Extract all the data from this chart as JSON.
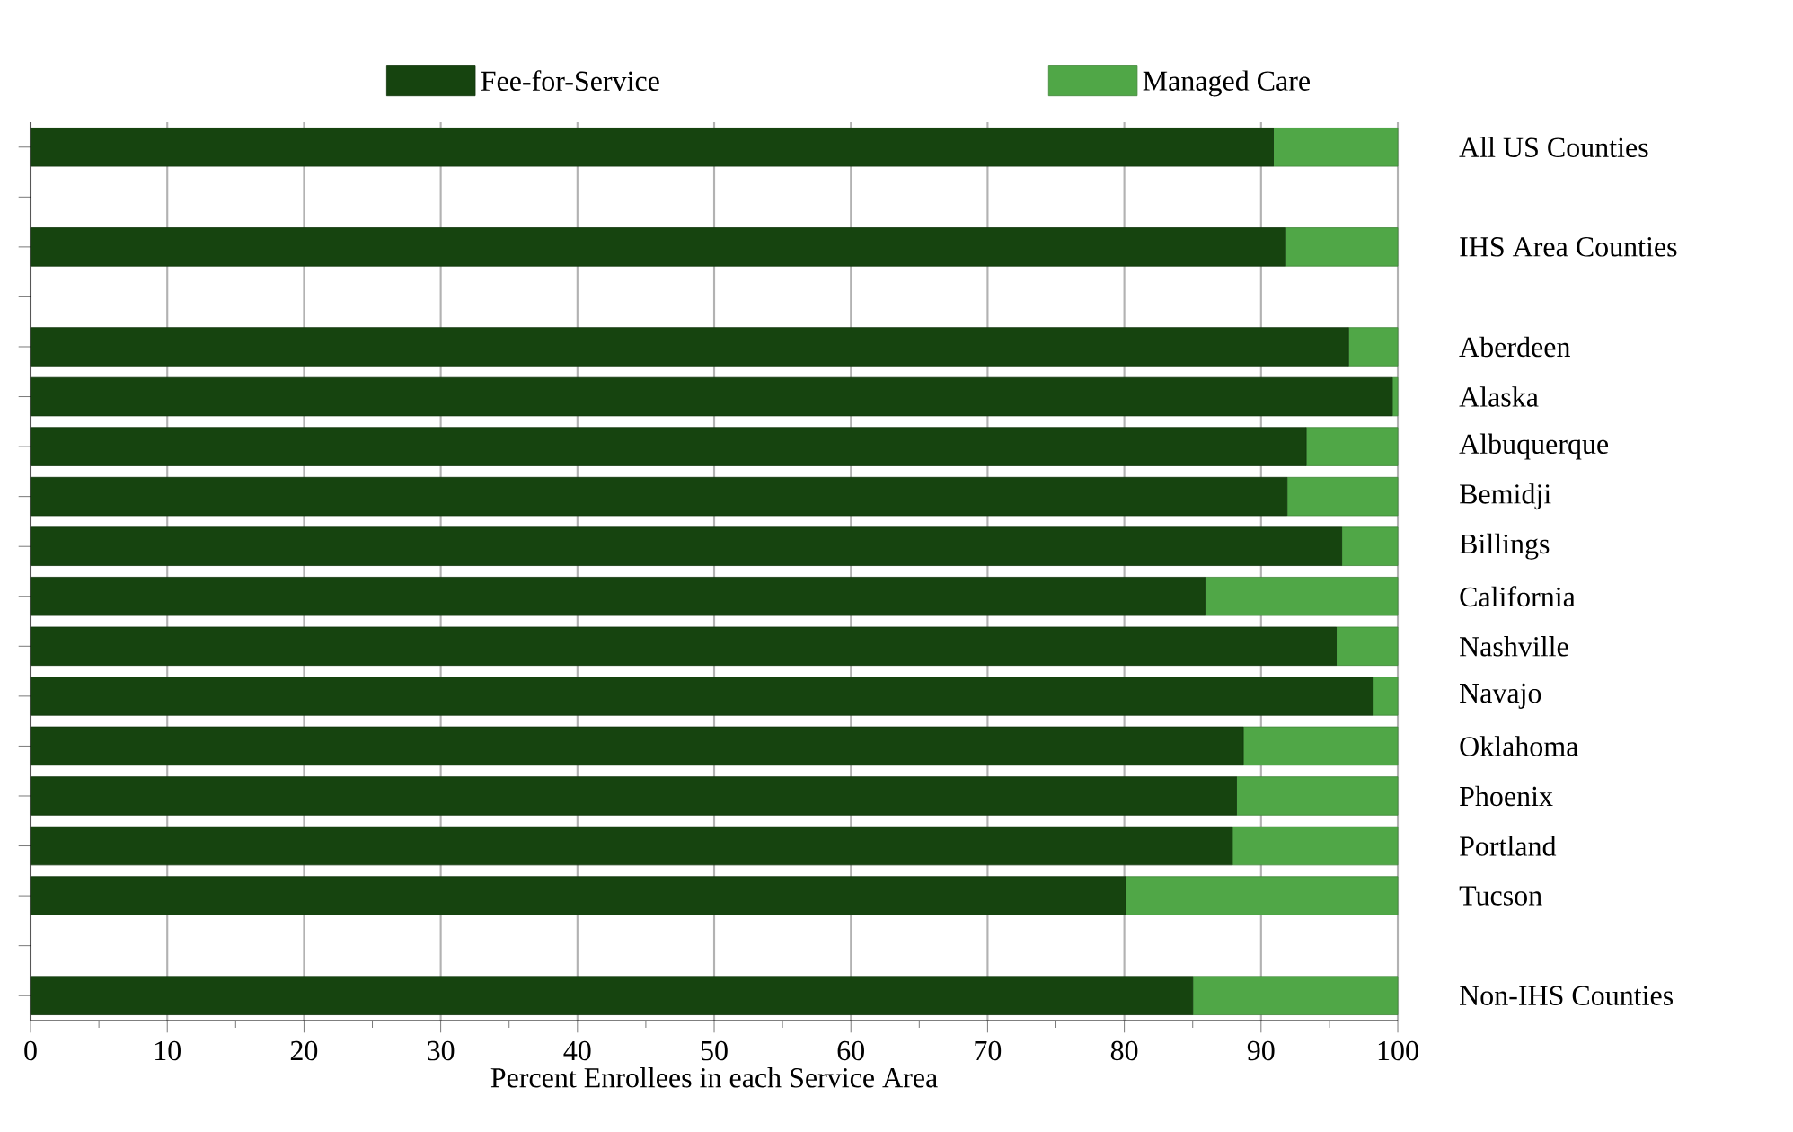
{
  "chart_data": {
    "type": "bar",
    "orientation": "horizontal",
    "stacked": true,
    "categories": [
      "All US Counties",
      null,
      "IHS Area Counties",
      null,
      "Aberdeen",
      "Alaska",
      "Albuquerque",
      "Bemidji",
      "Billings",
      "California",
      "Nashville",
      "Navajo",
      "Oklahoma",
      "Phoenix",
      "Portland",
      "Tucson",
      null,
      "Non-IHS Counties"
    ],
    "series": [
      {
        "name": "Fee-for-Service",
        "color": "#16440f",
        "values": [
          90.9,
          null,
          91.8,
          null,
          96.4,
          99.6,
          93.3,
          91.9,
          95.9,
          85.9,
          95.5,
          98.2,
          88.7,
          88.2,
          87.9,
          80.1,
          null,
          85.0
        ]
      },
      {
        "name": "Managed Care",
        "color": "#50a747",
        "values": [
          9.1,
          null,
          8.2,
          null,
          3.6,
          0.4,
          6.7,
          8.1,
          4.1,
          14.1,
          4.5,
          1.8,
          11.3,
          11.8,
          12.1,
          19.9,
          null,
          15.0
        ]
      }
    ],
    "xlabel": "Percent Enrollees in each Service Area",
    "xlim": [
      0,
      100
    ],
    "xticks": [
      0,
      10,
      20,
      30,
      40,
      50,
      60,
      70,
      80,
      90,
      100
    ],
    "grid": "x",
    "legend": "top"
  }
}
